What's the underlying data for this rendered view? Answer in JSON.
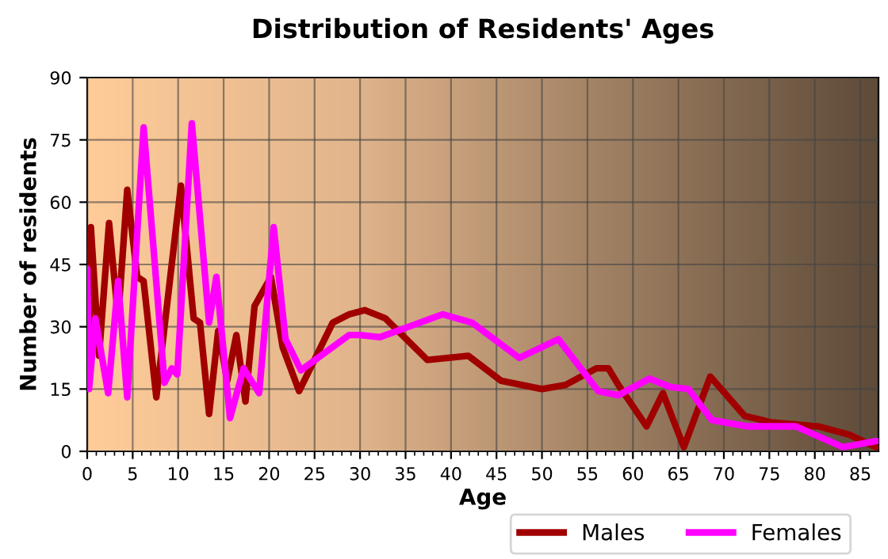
{
  "chart_data": {
    "type": "line",
    "title": "Distribution of Residents' Ages",
    "xlabel": "Age",
    "ylabel": "Number of residents",
    "xlim": [
      0,
      87
    ],
    "xticks": [
      0,
      5,
      10,
      15,
      20,
      25,
      30,
      35,
      40,
      45,
      50,
      55,
      60,
      65,
      70,
      75,
      80,
      85
    ],
    "ylim": [
      0,
      90
    ],
    "yticks": [
      0,
      15,
      30,
      45,
      60,
      75,
      90
    ],
    "grid": true,
    "legend": "bottom",
    "marker": "none",
    "line_style": "solid",
    "series": [
      {
        "name": "Males",
        "color": "#a00000",
        "x": [
          0,
          0.2,
          0.4,
          1.3,
          2.4,
          3.4,
          4.4,
          5.5,
          6.2,
          7.6,
          10.3,
          11.7,
          12.4,
          13.4,
          14.4,
          15.4,
          16.4,
          17.4,
          18.4,
          20.2,
          21.5,
          23.3,
          27,
          28.8,
          30.5,
          32.8,
          37.4,
          41.9,
          45.5,
          50,
          52.6,
          56,
          57.3,
          58.4,
          61.5,
          63.3,
          65.6,
          68.5,
          72.3,
          75.2,
          80.4,
          83.8,
          86.7
        ],
        "values": [
          44,
          24,
          54,
          23,
          55,
          32,
          63,
          42,
          41,
          13,
          64,
          32,
          31,
          9,
          29,
          17,
          28,
          12,
          35,
          42,
          25,
          14.5,
          31,
          33,
          34,
          32,
          22,
          23,
          17,
          15,
          16,
          20,
          20,
          16,
          6,
          14,
          1,
          18,
          8.5,
          7,
          6,
          4,
          1
        ]
      },
      {
        "name": "Females",
        "color": "#ff00ff",
        "x": [
          0,
          0.2,
          0.9,
          2.3,
          3.4,
          4.4,
          6.2,
          8.5,
          9.3,
          9.9,
          11.5,
          13.4,
          14.2,
          15.7,
          17.2,
          18.9,
          20.5,
          21.8,
          23.5,
          28.8,
          30,
          32.2,
          39.1,
          42.3,
          47.5,
          51.8,
          56.2,
          58.4,
          61.8,
          64.1,
          66.1,
          68.7,
          72.7,
          77.9,
          83.1,
          86.8
        ],
        "values": [
          44,
          15,
          32,
          14,
          41,
          13,
          78,
          16.5,
          20,
          18.5,
          79,
          31,
          42,
          8,
          20,
          14,
          54,
          27,
          19.5,
          28,
          28,
          27.5,
          33,
          31,
          22.5,
          27,
          14.5,
          13.5,
          17.5,
          15.5,
          15,
          7.5,
          6,
          6,
          1,
          2.5
        ]
      }
    ]
  }
}
